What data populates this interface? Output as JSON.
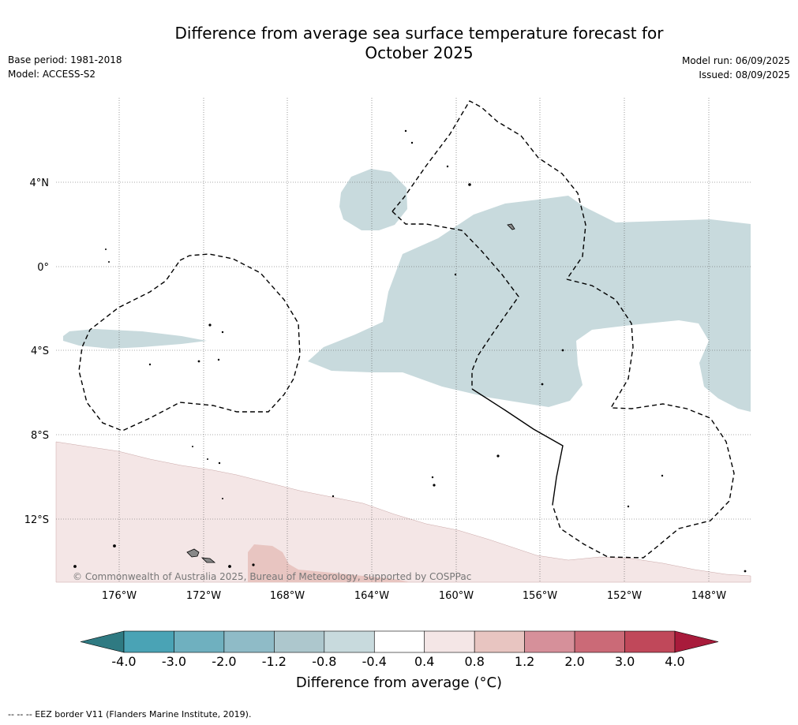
{
  "title_line1": "Difference from average sea surface temperature forecast for",
  "title_line2": "October 2025",
  "base_period": "Base period: 1981-2018",
  "model": "Model: ACCESS-S2",
  "model_run": "Model run: 06/09/2025",
  "issued": "Issued: 08/09/2025",
  "copyright": "© Commonwealth of Australia 2025, Bureau of Meteorology, supported by COSPPac",
  "lat_labels": [
    "4°N",
    "0°",
    "4°S",
    "8°S",
    "12°S"
  ],
  "lon_labels": [
    "176°W",
    "172°W",
    "168°W",
    "164°W",
    "160°W",
    "156°W",
    "152°W",
    "148°W"
  ],
  "colorbar": {
    "label": "Difference from average (°C)",
    "ticks": [
      "-4.0",
      "-3.0",
      "-2.0",
      "-1.2",
      "-0.8",
      "-0.4",
      "0.4",
      "0.8",
      "1.2",
      "2.0",
      "3.0",
      "4.0"
    ],
    "colors": [
      "#2f7a82",
      "#4aa3b5",
      "#6fb0bf",
      "#8fbbc7",
      "#adc7cd",
      "#c8dadd",
      "#ffffff",
      "#f4e6e6",
      "#e8c5c1",
      "#d6909a",
      "#cb6a77",
      "#c0485a",
      "#a81b3b"
    ]
  },
  "footnote": "--  --  -- EEZ border V11 (Flanders Marine Institute, 2019)."
}
